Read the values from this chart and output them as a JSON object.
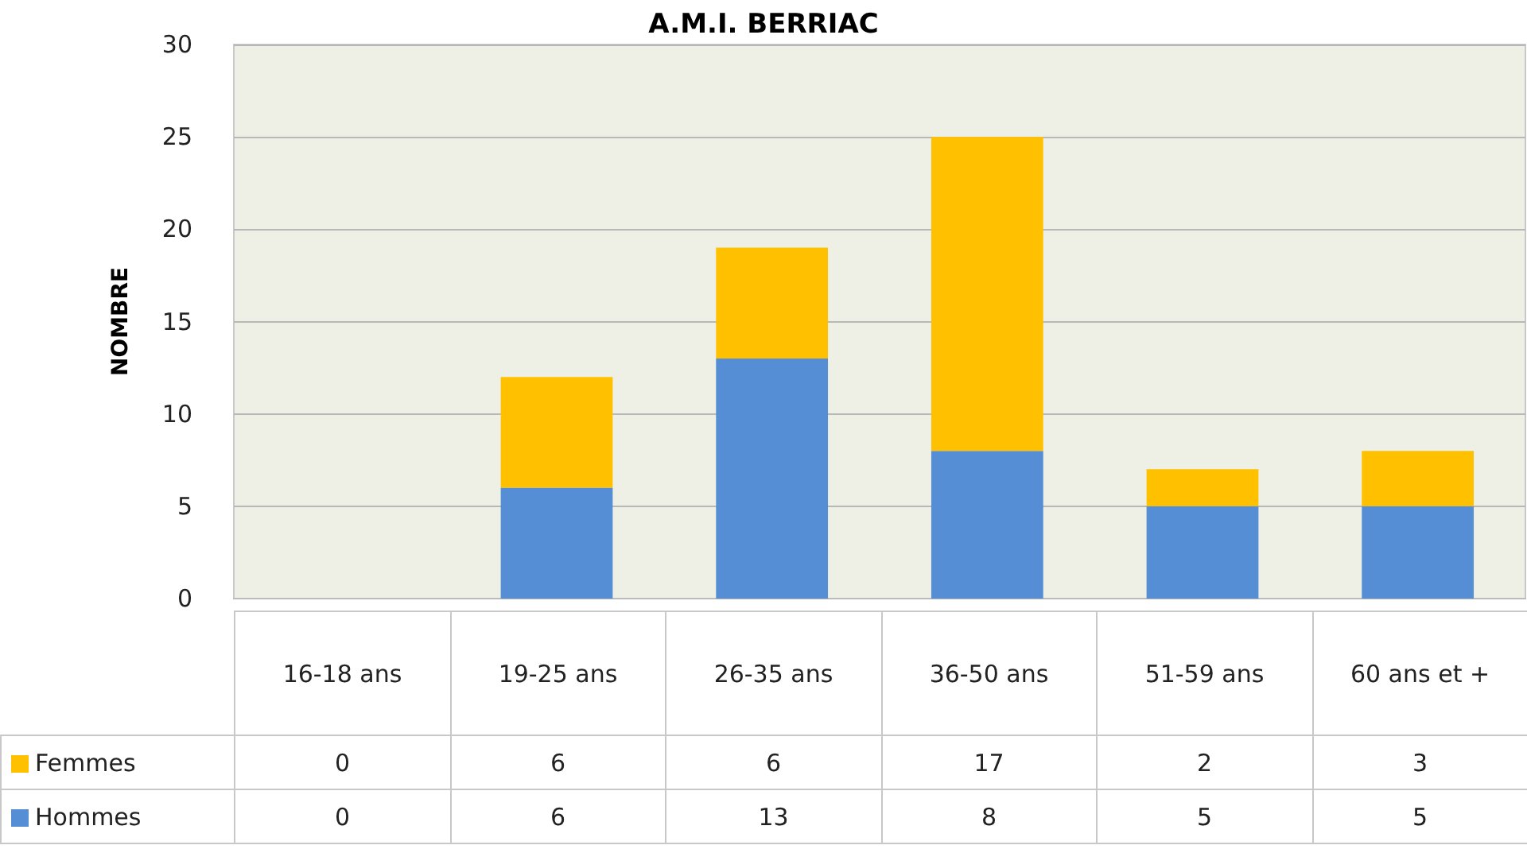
{
  "chart_data": {
    "type": "bar",
    "title": "A.M.I. BERRIAC",
    "ylabel": "NOMBRE",
    "categories": [
      "16-18 ans",
      "19-25 ans",
      "26-35 ans",
      "36-50 ans",
      "51-59 ans",
      "60 ans et +"
    ],
    "series": [
      {
        "name": "Hommes",
        "color": "#558ed5",
        "values": [
          0,
          6,
          13,
          8,
          5,
          5
        ]
      },
      {
        "name": "Femmes",
        "color": "#ffc000",
        "values": [
          0,
          6,
          6,
          17,
          2,
          3
        ]
      }
    ],
    "stacked": true,
    "ylim": [
      0,
      30
    ],
    "yticks": [
      0,
      5,
      10,
      15,
      20,
      25,
      30
    ],
    "grid": "y",
    "legend": "bottom left",
    "data_labels": true
  }
}
